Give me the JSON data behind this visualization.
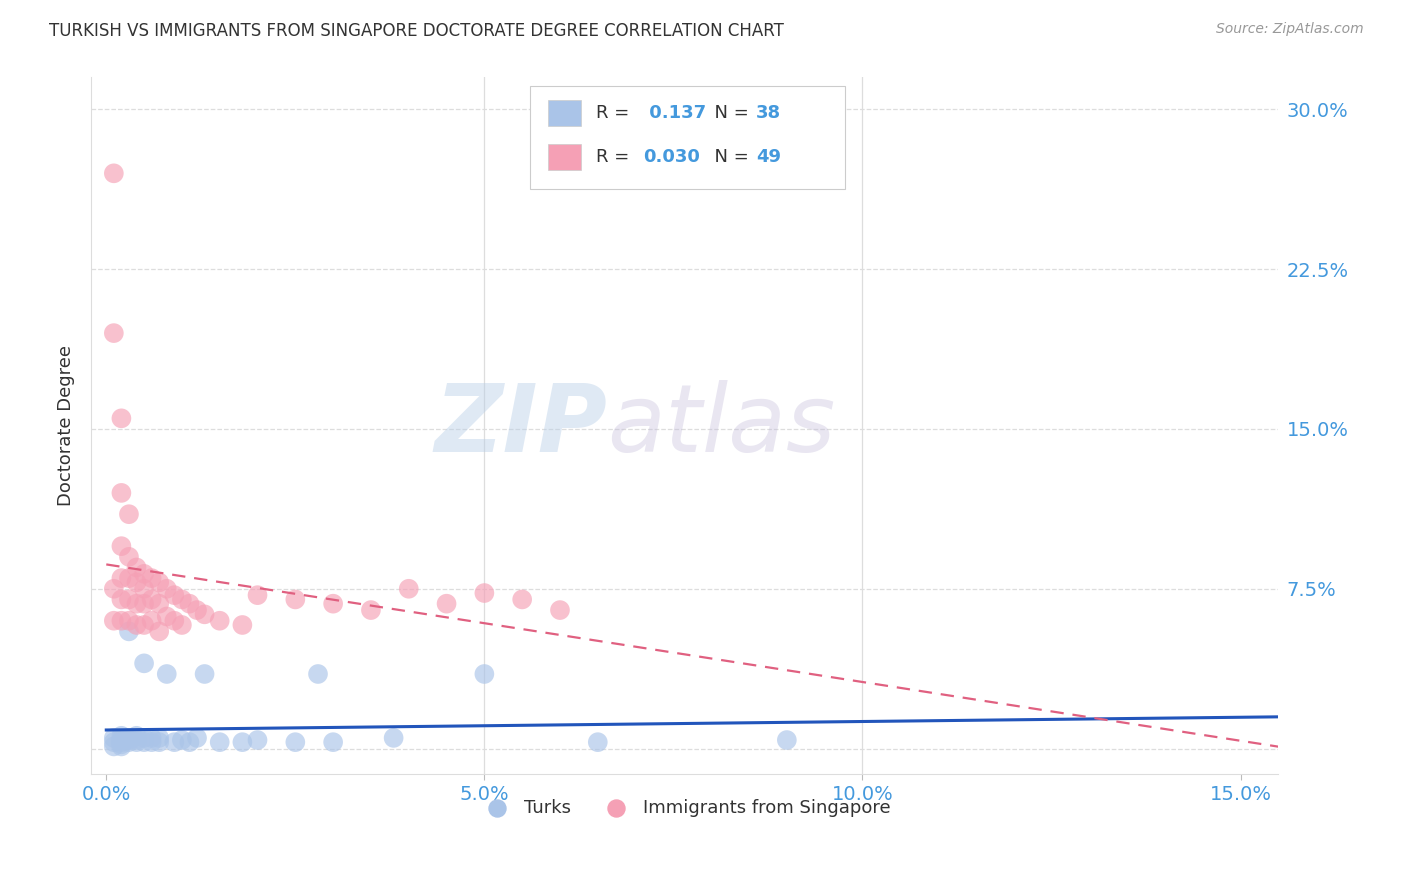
{
  "title": "TURKISH VS IMMIGRANTS FROM SINGAPORE DOCTORATE DEGREE CORRELATION CHART",
  "source": "Source: ZipAtlas.com",
  "ylabel": "Doctorate Degree",
  "ytick_values": [
    0.0,
    0.075,
    0.15,
    0.225,
    0.3
  ],
  "ytick_labels": [
    "",
    "7.5%",
    "15.0%",
    "22.5%",
    "30.0%"
  ],
  "xtick_values": [
    0.0,
    0.05,
    0.1,
    0.15
  ],
  "xtick_labels": [
    "0.0%",
    "5.0%",
    "10.0%",
    "15.0%"
  ],
  "xlim": [
    -0.002,
    0.155
  ],
  "ylim": [
    -0.012,
    0.315
  ],
  "watermark_zip": "ZIP",
  "watermark_atlas": "atlas",
  "legend_turks_R": "0.137",
  "legend_turks_N": "38",
  "legend_singapore_R": "0.030",
  "legend_singapore_N": "49",
  "turks_color": "#aac4e8",
  "singapore_color": "#f5a0b5",
  "turks_line_color": "#2255bb",
  "singapore_line_color": "#e06080",
  "text_color": "#333333",
  "axis_color": "#4499dd",
  "grid_color": "#dddddd",
  "background_color": "#ffffff",
  "turks_x": [
    0.001,
    0.001,
    0.001,
    0.002,
    0.002,
    0.002,
    0.002,
    0.002,
    0.003,
    0.003,
    0.003,
    0.003,
    0.004,
    0.004,
    0.004,
    0.005,
    0.005,
    0.005,
    0.006,
    0.006,
    0.007,
    0.007,
    0.008,
    0.009,
    0.01,
    0.011,
    0.012,
    0.013,
    0.015,
    0.018,
    0.02,
    0.025,
    0.028,
    0.03,
    0.038,
    0.05,
    0.065,
    0.09
  ],
  "turks_y": [
    0.005,
    0.003,
    0.001,
    0.006,
    0.004,
    0.003,
    0.002,
    0.001,
    0.055,
    0.005,
    0.004,
    0.003,
    0.006,
    0.004,
    0.003,
    0.04,
    0.005,
    0.003,
    0.005,
    0.003,
    0.005,
    0.003,
    0.035,
    0.003,
    0.004,
    0.003,
    0.005,
    0.035,
    0.003,
    0.003,
    0.004,
    0.003,
    0.035,
    0.003,
    0.005,
    0.035,
    0.003,
    0.004
  ],
  "singapore_x": [
    0.001,
    0.001,
    0.001,
    0.001,
    0.002,
    0.002,
    0.002,
    0.002,
    0.002,
    0.002,
    0.003,
    0.003,
    0.003,
    0.003,
    0.003,
    0.004,
    0.004,
    0.004,
    0.004,
    0.005,
    0.005,
    0.005,
    0.005,
    0.006,
    0.006,
    0.006,
    0.007,
    0.007,
    0.007,
    0.008,
    0.008,
    0.009,
    0.009,
    0.01,
    0.01,
    0.011,
    0.012,
    0.013,
    0.015,
    0.018,
    0.02,
    0.025,
    0.03,
    0.035,
    0.04,
    0.045,
    0.05,
    0.055,
    0.06
  ],
  "singapore_y": [
    0.27,
    0.195,
    0.075,
    0.06,
    0.155,
    0.12,
    0.095,
    0.08,
    0.07,
    0.06,
    0.11,
    0.09,
    0.08,
    0.07,
    0.06,
    0.085,
    0.078,
    0.068,
    0.058,
    0.082,
    0.075,
    0.068,
    0.058,
    0.08,
    0.07,
    0.06,
    0.078,
    0.068,
    0.055,
    0.075,
    0.062,
    0.072,
    0.06,
    0.07,
    0.058,
    0.068,
    0.065,
    0.063,
    0.06,
    0.058,
    0.072,
    0.07,
    0.068,
    0.065,
    0.075,
    0.068,
    0.073,
    0.07,
    0.065
  ]
}
